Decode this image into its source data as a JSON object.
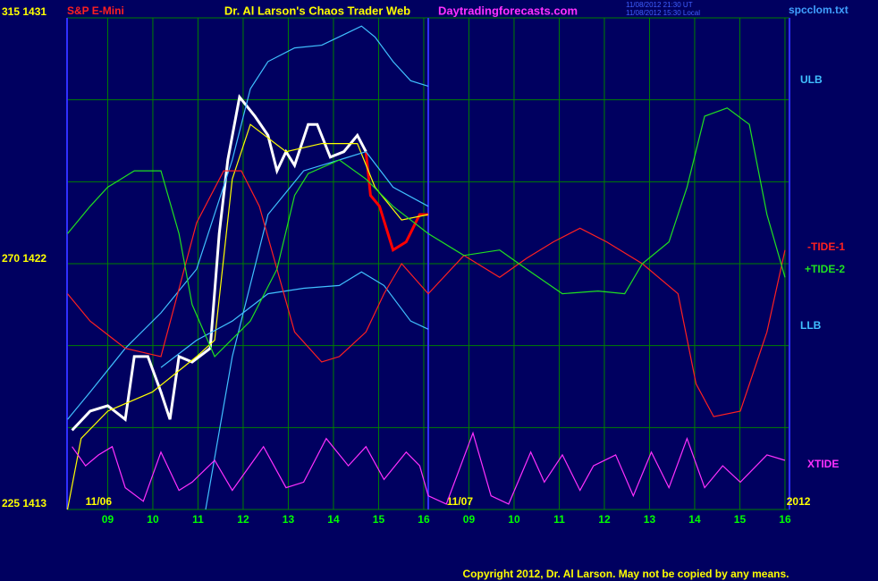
{
  "chart_data": {
    "type": "line",
    "header": {
      "instrument": "S&P E-Mini",
      "title": "Dr. Al Larson's Chaos Trader Web",
      "site": "Daytradingforecasts.com",
      "stamp_ut": "11/08/2012 21:30 UT",
      "stamp_local": "11/08/2012 15:30 Local",
      "file": "spcclom.txt"
    },
    "copyright": "Copyright 2012, Dr. Al Larson. May not be copied by any means.",
    "date_labels": [
      {
        "value": 0.8,
        "label": "11/06"
      },
      {
        "value": 8.8,
        "label": "11/07"
      },
      {
        "value": 16.3,
        "label": "2012"
      }
    ],
    "xlim": [
      0.1,
      16.1
    ],
    "xticks": [
      {
        "value": 1,
        "label": "09"
      },
      {
        "value": 2,
        "label": "10"
      },
      {
        "value": 3,
        "label": "11"
      },
      {
        "value": 4,
        "label": "12"
      },
      {
        "value": 5,
        "label": "13"
      },
      {
        "value": 6,
        "label": "14"
      },
      {
        "value": 7,
        "label": "15"
      },
      {
        "value": 8,
        "label": "16"
      },
      {
        "value": 9,
        "label": "09"
      },
      {
        "value": 10,
        "label": "10"
      },
      {
        "value": 11,
        "label": "11"
      },
      {
        "value": 12,
        "label": "12"
      },
      {
        "value": 13,
        "label": "13"
      },
      {
        "value": 14,
        "label": "14"
      },
      {
        "value": 15,
        "label": "15"
      },
      {
        "value": 16,
        "label": "16"
      }
    ],
    "day_divider": 8.1,
    "ylim": [
      1413,
      1431
    ],
    "yticks": [
      {
        "value": 1431,
        "label": "315 1431"
      },
      {
        "value": 1422,
        "label": "270 1422"
      },
      {
        "value": 1413,
        "label": "225 1413"
      }
    ],
    "ygrid": [
      1413,
      1416,
      1419,
      1422,
      1425,
      1428,
      1431
    ],
    "grid": true,
    "series": [
      {
        "color": "#ffffff",
        "x": [
          0.21,
          0.61,
          1.0,
          1.39,
          1.59,
          1.89,
          2.18,
          2.38,
          2.58,
          2.87,
          3.27,
          3.47,
          3.66,
          3.92,
          4.26,
          4.55,
          4.75,
          4.95,
          5.14,
          5.44,
          5.64,
          5.93,
          6.23,
          6.53,
          6.72
        ],
        "values": [
          1415.9,
          1416.6,
          1416.8,
          1416.3,
          1418.6,
          1418.6,
          1417.3,
          1416.3,
          1418.6,
          1418.4,
          1418.9,
          1423.1,
          1425.8,
          1428.1,
          1427.4,
          1426.7,
          1425.4,
          1426.1,
          1425.6,
          1427.1,
          1427.1,
          1425.9,
          1426.1,
          1426.7,
          1426.1
        ]
      },
      {
        "color": "#ff0000",
        "x": [
          6.72,
          6.82,
          7.02,
          7.32,
          7.61,
          7.91,
          8.1
        ],
        "values": [
          1426.1,
          1424.5,
          1424.1,
          1422.5,
          1422.8,
          1423.8,
          1423.8
        ]
      },
      {
        "color": "#ffff00",
        "x": [
          0.11,
          0.41,
          1.0,
          1.99,
          2.97,
          3.37,
          3.76,
          4.16,
          4.95,
          5.74,
          6.53,
          6.92,
          7.51,
          8.1
        ],
        "values": [
          1413.0,
          1415.6,
          1416.6,
          1417.3,
          1418.6,
          1419.2,
          1425.1,
          1427.1,
          1426.1,
          1426.4,
          1426.4,
          1424.8,
          1423.6,
          1423.8
        ]
      },
      {
        "name": "ULB",
        "color": "#40c0ff",
        "x": [
          0.11,
          0.61,
          1.39,
          2.18,
          2.97,
          3.76,
          4.16,
          4.55,
          5.14,
          5.74,
          6.62,
          6.92,
          7.32,
          7.71,
          8.1
        ],
        "values": [
          1416.3,
          1417.3,
          1418.9,
          1420.2,
          1421.8,
          1425.8,
          1428.4,
          1429.4,
          1429.9,
          1430.0,
          1430.7,
          1430.3,
          1429.4,
          1428.7,
          1428.5
        ]
      },
      {
        "color": "#40c0ff",
        "x": [
          3.17,
          3.76,
          4.55,
          5.34,
          6.13,
          6.72,
          7.32,
          8.1
        ],
        "values": [
          1413.0,
          1418.6,
          1423.8,
          1425.4,
          1425.8,
          1426.1,
          1424.8,
          1424.1
        ]
      },
      {
        "name": "LLB",
        "color": "#40c0ff",
        "x": [
          2.18,
          2.97,
          3.76,
          4.55,
          5.34,
          6.13,
          6.62,
          7.12,
          7.71,
          8.1
        ],
        "values": [
          1418.2,
          1419.2,
          1419.9,
          1420.9,
          1421.1,
          1421.2,
          1421.7,
          1421.2,
          1419.9,
          1419.6
        ]
      },
      {
        "name": "-TIDE-1",
        "color": "#ff2020",
        "x": [
          0.11,
          0.61,
          1.39,
          2.18,
          2.97,
          3.57,
          3.96,
          4.36,
          4.75,
          5.14,
          5.74,
          6.13,
          6.72,
          7.12,
          7.51,
          8.1,
          8.89,
          9.68,
          10.28,
          10.87,
          11.46,
          12.05,
          12.84,
          13.63,
          14.03,
          14.42,
          15.01,
          15.6,
          16.0
        ],
        "values": [
          1420.9,
          1419.9,
          1418.9,
          1418.6,
          1423.5,
          1425.4,
          1425.4,
          1424.1,
          1421.8,
          1419.5,
          1418.4,
          1418.6,
          1419.5,
          1420.9,
          1422.0,
          1420.9,
          1422.3,
          1421.5,
          1422.2,
          1422.8,
          1423.3,
          1422.8,
          1422.0,
          1420.9,
          1417.6,
          1416.4,
          1416.6,
          1419.5,
          1422.5
        ]
      },
      {
        "name": "+TIDE-2",
        "color": "#20e020",
        "x": [
          0.11,
          0.61,
          1.0,
          1.59,
          2.18,
          2.58,
          2.87,
          3.37,
          4.16,
          4.75,
          5.14,
          5.44,
          6.13,
          6.72,
          7.32,
          8.1,
          8.89,
          9.68,
          10.28,
          11.07,
          11.86,
          12.45,
          12.84,
          13.43,
          13.83,
          14.22,
          14.72,
          15.21,
          15.6,
          16.0
        ],
        "values": [
          1423.1,
          1424.1,
          1424.8,
          1425.4,
          1425.4,
          1423.1,
          1420.5,
          1418.6,
          1419.9,
          1421.8,
          1424.5,
          1425.3,
          1425.8,
          1425.1,
          1424.1,
          1423.1,
          1422.3,
          1422.5,
          1421.8,
          1420.9,
          1421.0,
          1420.9,
          1422.0,
          1422.8,
          1424.8,
          1427.4,
          1427.7,
          1427.1,
          1423.8,
          1421.5
        ]
      },
      {
        "name": "XTIDE",
        "color": "#ff30ff",
        "x": [
          0.21,
          0.51,
          0.8,
          1.1,
          1.39,
          1.79,
          2.18,
          2.58,
          2.87,
          3.37,
          3.76,
          4.45,
          4.95,
          5.34,
          5.84,
          6.33,
          6.72,
          7.12,
          7.61,
          7.91,
          8.1,
          8.5,
          9.09,
          9.49,
          9.88,
          10.37,
          10.67,
          11.07,
          11.46,
          11.76,
          12.25,
          12.64,
          13.04,
          13.43,
          13.83,
          14.22,
          14.62,
          15.01,
          15.6,
          16.0
        ],
        "values": [
          1415.3,
          1414.6,
          1415.0,
          1415.3,
          1413.8,
          1413.3,
          1415.1,
          1413.7,
          1414.0,
          1414.8,
          1413.7,
          1415.3,
          1413.8,
          1414.0,
          1415.6,
          1414.6,
          1415.3,
          1414.1,
          1415.1,
          1414.6,
          1413.5,
          1413.2,
          1415.8,
          1413.5,
          1413.2,
          1415.1,
          1414.0,
          1415.0,
          1413.7,
          1414.6,
          1415.0,
          1413.5,
          1415.1,
          1413.8,
          1415.6,
          1413.8,
          1414.6,
          1414.0,
          1415.0,
          1414.8
        ]
      }
    ]
  }
}
